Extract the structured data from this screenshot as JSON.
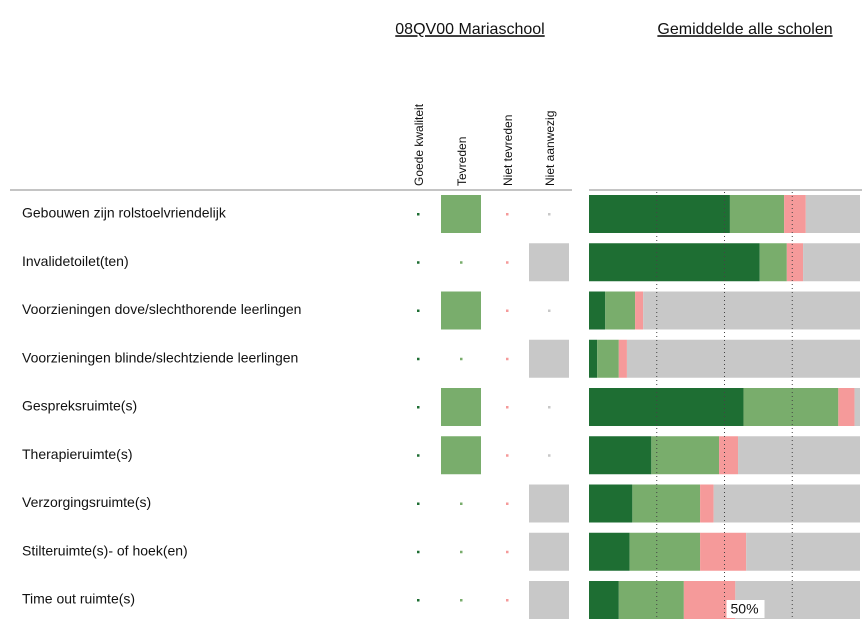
{
  "chart_data": {
    "type": "stacked-bar-table",
    "title": "08QV00 Mariaschool",
    "subtitle": "Gemiddelde alle scholen",
    "categories": [
      "Gebouwen zijn rolstoelvriendelijk",
      "Invalidetoilet(ten)",
      "Voorzieningen dove/slechthorende leerlingen",
      "Voorzieningen blinde/slechtziende leerlingen",
      "Gespreksruimte(s)",
      "Therapieruimte(s)",
      "Verzorgingsruimte(s)",
      "Stilteruimte(s)- of hoek(en)",
      "Time out ruimte(s)"
    ],
    "series": [
      {
        "name": "Goede kwaliteit",
        "color": "#1e6e33",
        "values": [
          52,
          63,
          6,
          3,
          57,
          23,
          16,
          15,
          11
        ],
        "school": [
          0,
          0,
          0,
          0,
          0,
          0,
          0,
          0,
          0
        ]
      },
      {
        "name": "Tevreden",
        "color": "#79ad6c",
        "values": [
          20,
          10,
          11,
          8,
          35,
          25,
          25,
          26,
          24
        ],
        "school": [
          1,
          0,
          1,
          0,
          1,
          1,
          0,
          0,
          0
        ]
      },
      {
        "name": "Niet tevreden",
        "color": "#f59a9a",
        "values": [
          8,
          6,
          3,
          3,
          6,
          7,
          5,
          17,
          19
        ],
        "school": [
          0,
          0,
          0,
          0,
          0,
          0,
          0,
          0,
          0
        ]
      },
      {
        "name": "Niet aanwezig",
        "color": "#c8c8c8",
        "values": [
          20,
          21,
          80,
          86,
          2,
          45,
          54,
          42,
          46
        ],
        "school": [
          0,
          1,
          0,
          1,
          0,
          0,
          1,
          1,
          1
        ]
      }
    ],
    "xlim": [
      0,
      100
    ],
    "gridlines": [
      25,
      50,
      75
    ],
    "xticks": [
      {
        "value": 50,
        "label": "50%"
      }
    ]
  }
}
